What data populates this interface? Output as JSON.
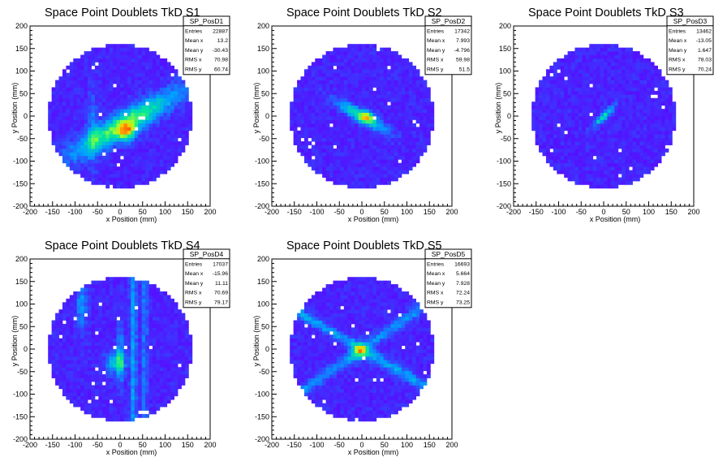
{
  "chart_data": [
    {
      "type": "heatmap",
      "title": "Space Point Doublets TkD S1",
      "xlabel": "x Position (mm)",
      "ylabel": "y Position (mm)",
      "xlim": [
        -200,
        200
      ],
      "ylim": [
        -200,
        200
      ],
      "xticks": [
        -200,
        -150,
        -100,
        -50,
        0,
        50,
        100,
        150,
        200
      ],
      "yticks": [
        -200,
        -150,
        -100,
        -50,
        0,
        50,
        100,
        150,
        200
      ],
      "pattern": "band",
      "band_angle_deg": 30,
      "stats": {
        "name": "SP_PosD1",
        "rows": [
          {
            "label": "Entries",
            "value": "22887"
          },
          {
            "label": "Mean x",
            "value": "13.2"
          },
          {
            "label": "Mean y",
            "value": "-30.43"
          },
          {
            "label": "RMS x",
            "value": "70.98"
          },
          {
            "label": "RMS y",
            "value": "60.74"
          }
        ]
      }
    },
    {
      "type": "heatmap",
      "title": "Space Point Doublets TkD S2",
      "xlabel": "x Position (mm)",
      "ylabel": "y Position (mm)",
      "xlim": [
        -200,
        200
      ],
      "ylim": [
        -200,
        200
      ],
      "xticks": [
        -200,
        -150,
        -100,
        -50,
        0,
        50,
        100,
        150,
        200
      ],
      "yticks": [
        -200,
        -150,
        -100,
        -50,
        0,
        50,
        100,
        150,
        200
      ],
      "pattern": "diag",
      "band_angle_deg": -30,
      "stats": {
        "name": "SP_PosD2",
        "rows": [
          {
            "label": "Entries",
            "value": "17342"
          },
          {
            "label": "Mean x",
            "value": "7.993"
          },
          {
            "label": "Mean y",
            "value": "-4.796"
          },
          {
            "label": "RMS x",
            "value": "59.98"
          },
          {
            "label": "RMS y",
            "value": "51.5"
          }
        ]
      }
    },
    {
      "type": "heatmap",
      "title": "Space Point Doublets TkD S3",
      "xlabel": "x Position (mm)",
      "ylabel": "y Position (mm)",
      "xlim": [
        -200,
        200
      ],
      "ylim": [
        -200,
        200
      ],
      "xticks": [
        -200,
        -150,
        -100,
        -50,
        0,
        50,
        100,
        150,
        200
      ],
      "yticks": [
        -200,
        -150,
        -100,
        -50,
        0,
        50,
        100,
        150,
        200
      ],
      "pattern": "small",
      "band_angle_deg": 45,
      "stats": {
        "name": "SP_PosD3",
        "rows": [
          {
            "label": "Entries",
            "value": "13462"
          },
          {
            "label": "Mean x",
            "value": "-13.05"
          },
          {
            "label": "Mean y",
            "value": "1.647"
          },
          {
            "label": "RMS x",
            "value": "78.03"
          },
          {
            "label": "RMS y",
            "value": "70.24"
          }
        ]
      }
    },
    {
      "type": "heatmap",
      "title": "Space Point Doublets TkD S4",
      "xlabel": "x Position (mm)",
      "ylabel": "y Position (mm)",
      "xlim": [
        -200,
        200
      ],
      "ylim": [
        -200,
        200
      ],
      "xticks": [
        -200,
        -150,
        -100,
        -50,
        0,
        50,
        100,
        150,
        200
      ],
      "yticks": [
        -200,
        -150,
        -100,
        -50,
        0,
        50,
        100,
        150,
        200
      ],
      "pattern": "vert",
      "band_angle_deg": 60,
      "stats": {
        "name": "SP_PosD4",
        "rows": [
          {
            "label": "Entries",
            "value": "17037"
          },
          {
            "label": "Mean x",
            "value": "-15.96"
          },
          {
            "label": "Mean y",
            "value": "11.11"
          },
          {
            "label": "RMS x",
            "value": "70.69"
          },
          {
            "label": "RMS y",
            "value": "79.17"
          }
        ]
      }
    },
    {
      "type": "heatmap",
      "title": "Space Point Doublets TkD S5",
      "xlabel": "x Position (mm)",
      "ylabel": "y Position (mm)",
      "xlim": [
        -200,
        200
      ],
      "ylim": [
        -200,
        200
      ],
      "xticks": [
        -200,
        -150,
        -100,
        -50,
        0,
        50,
        100,
        150,
        200
      ],
      "yticks": [
        -200,
        -150,
        -100,
        -50,
        0,
        50,
        100,
        150,
        200
      ],
      "pattern": "cross",
      "band_angle_deg": -30,
      "stats": {
        "name": "SP_PosD5",
        "rows": [
          {
            "label": "Entries",
            "value": "16693"
          },
          {
            "label": "Mean x",
            "value": "5.664"
          },
          {
            "label": "Mean y",
            "value": "7.928"
          },
          {
            "label": "RMS x",
            "value": "72.24"
          },
          {
            "label": "RMS y",
            "value": "73.25"
          }
        ]
      }
    }
  ]
}
